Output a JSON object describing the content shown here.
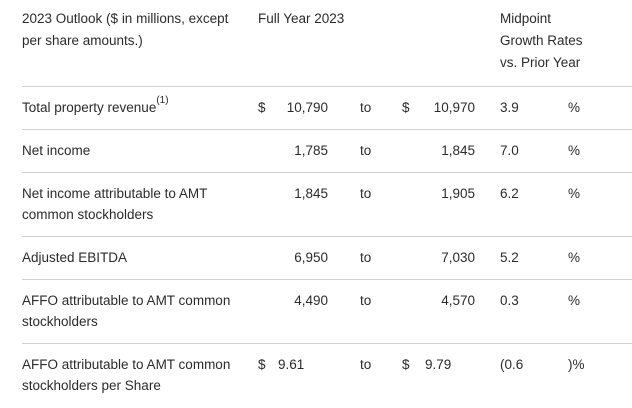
{
  "table": {
    "range_separator": "to",
    "header": {
      "description_line1": "2023 Outlook ($ in millions, except",
      "description_line2": "per share amounts.)",
      "full_year": "Full Year 2023",
      "growth_line1": "Midpoint",
      "growth_line2": "Growth Rates",
      "growth_line3": "vs. Prior Year"
    },
    "rows": [
      {
        "label_lines": [
          "Total property revenue"
        ],
        "footnote": "(1)",
        "currency_low": "$",
        "low": "10,790",
        "currency_high": "$",
        "high": "10,970",
        "growth": "3.9",
        "pct": "%"
      },
      {
        "label_lines": [
          "Net income"
        ],
        "currency_low": "",
        "low": "1,785",
        "currency_high": "",
        "high": "1,845",
        "growth": "7.0",
        "pct": "%"
      },
      {
        "label_lines": [
          "Net income attributable to AMT",
          "common stockholders"
        ],
        "currency_low": "",
        "low": "1,845",
        "currency_high": "",
        "high": "1,905",
        "growth": "6.2",
        "pct": "%"
      },
      {
        "label_lines": [
          "Adjusted EBITDA"
        ],
        "currency_low": "",
        "low": "6,950",
        "currency_high": "",
        "high": "7,030",
        "growth": "5.2",
        "pct": "%"
      },
      {
        "label_lines": [
          "AFFO attributable to AMT common",
          "stockholders"
        ],
        "currency_low": "",
        "low": "4,490",
        "currency_high": "",
        "high": "4,570",
        "growth": "0.3",
        "pct": "%"
      },
      {
        "label_lines": [
          "AFFO attributable to AMT common",
          "stockholders per Share"
        ],
        "currency_low": "$",
        "low": "9.61",
        "currency_high": "$",
        "high": "9.79",
        "growth": "(0.6",
        "pct": ")%"
      }
    ]
  }
}
